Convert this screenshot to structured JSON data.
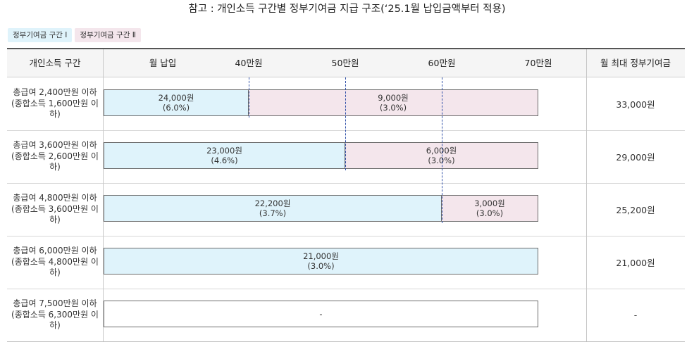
{
  "title": "참고 : 개인소득 구간별 정부기여금 지급 구조(‘25.1월 납입금액부터 적용)",
  "legend": {
    "tier1": "정부기여금 구간 Ⅰ",
    "tier2": "정부기여금 구간 Ⅱ"
  },
  "header": {
    "income_band": "개인소득 구간",
    "monthly_payment": "월 납입",
    "ticks": [
      "40만원",
      "50만원",
      "60만원",
      "70만원"
    ],
    "max_contribution": "월 최대 정부기여금"
  },
  "colors": {
    "tier1": "#dff3fb",
    "tier2": "#f4e6ec",
    "divider": "#2f4fa8"
  },
  "rows": [
    {
      "label": "총급여 2,400만원 이하 (종합소득 1,600만원 이하)",
      "max": "33,000원",
      "seg1": {
        "amount": "24,000원",
        "rate": "(6.0%)",
        "upper_limit_manwon": 40
      },
      "seg2": {
        "amount": "9,000원",
        "rate": "(3.0%)"
      }
    },
    {
      "label": "총급여 3,600만원 이하 (종합소득 2,600만원 이하)",
      "max": "29,000원",
      "seg1": {
        "amount": "23,000원",
        "rate": "(4.6%)",
        "upper_limit_manwon": 50
      },
      "seg2": {
        "amount": "6,000원",
        "rate": "(3.0%)"
      }
    },
    {
      "label": "총급여 4,800만원 이하 (종합소득 3,600만원 이하)",
      "max": "25,200원",
      "seg1": {
        "amount": "22,200원",
        "rate": "(3.7%)",
        "upper_limit_manwon": 60
      },
      "seg2": {
        "amount": "3,000원",
        "rate": "(3.0%)"
      }
    },
    {
      "label": "총급여 6,000만원 이하 (종합소득 4,800만원 이하)",
      "max": "21,000원",
      "seg1": {
        "amount": "21,000원",
        "rate": "(3.0%)",
        "upper_limit_manwon": 70
      }
    },
    {
      "label": "총급여 7,500만원 이하 (종합소득 6,300만원 이하)",
      "max": "-",
      "none": "-"
    }
  ]
}
